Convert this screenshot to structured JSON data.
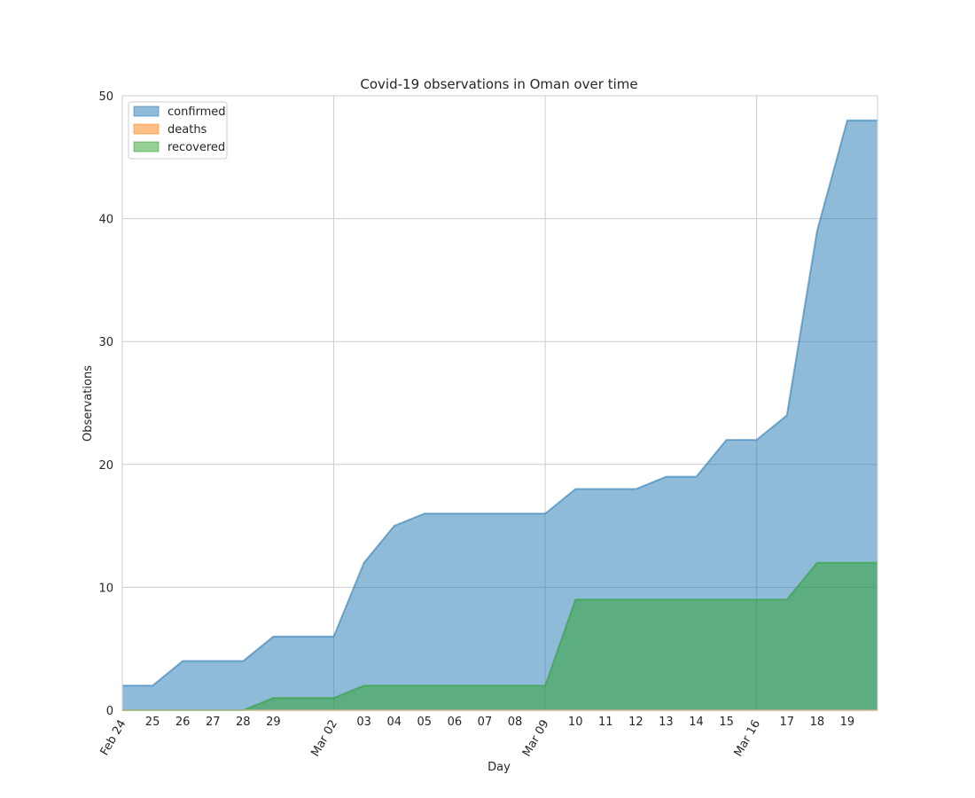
{
  "chart_data": {
    "type": "area",
    "title": "Covid-19 observations in Oman over time",
    "xlabel": "Day",
    "ylabel": "Observations",
    "x": [
      "2020-02-24",
      "2020-02-25",
      "2020-02-26",
      "2020-02-27",
      "2020-02-28",
      "2020-02-29",
      "2020-03-01",
      "2020-03-02",
      "2020-03-03",
      "2020-03-04",
      "2020-03-05",
      "2020-03-06",
      "2020-03-07",
      "2020-03-08",
      "2020-03-09",
      "2020-03-10",
      "2020-03-11",
      "2020-03-12",
      "2020-03-13",
      "2020-03-14",
      "2020-03-15",
      "2020-03-16",
      "2020-03-17",
      "2020-03-18",
      "2020-03-19",
      "2020-03-20"
    ],
    "x_tick_labels": [
      "Feb 24",
      "25",
      "26",
      "27",
      "28",
      "29",
      "",
      "Mar 02",
      "03",
      "04",
      "05",
      "06",
      "07",
      "08",
      "Mar 09",
      "10",
      "11",
      "12",
      "13",
      "14",
      "15",
      "Mar 16",
      "17",
      "18",
      "19",
      ""
    ],
    "ylim": [
      0,
      50
    ],
    "y_ticks": [
      0,
      10,
      20,
      30,
      40,
      50
    ],
    "grid": true,
    "legend_position": "top-left",
    "series": [
      {
        "name": "confirmed",
        "color": "#1f77b4",
        "values": [
          2,
          2,
          4,
          4,
          4,
          6,
          6,
          6,
          12,
          15,
          16,
          16,
          16,
          16,
          16,
          18,
          18,
          18,
          19,
          19,
          22,
          22,
          24,
          39,
          48,
          48
        ]
      },
      {
        "name": "deaths",
        "color": "#ff7f0e",
        "values": [
          0,
          0,
          0,
          0,
          0,
          0,
          0,
          0,
          0,
          0,
          0,
          0,
          0,
          0,
          0,
          0,
          0,
          0,
          0,
          0,
          0,
          0,
          0,
          0,
          0,
          0
        ]
      },
      {
        "name": "recovered",
        "color": "#2ca02c",
        "values": [
          0,
          0,
          0,
          0,
          0,
          1,
          1,
          1,
          2,
          2,
          2,
          2,
          2,
          2,
          2,
          9,
          9,
          9,
          9,
          9,
          9,
          9,
          9,
          12,
          12,
          12
        ]
      }
    ]
  }
}
